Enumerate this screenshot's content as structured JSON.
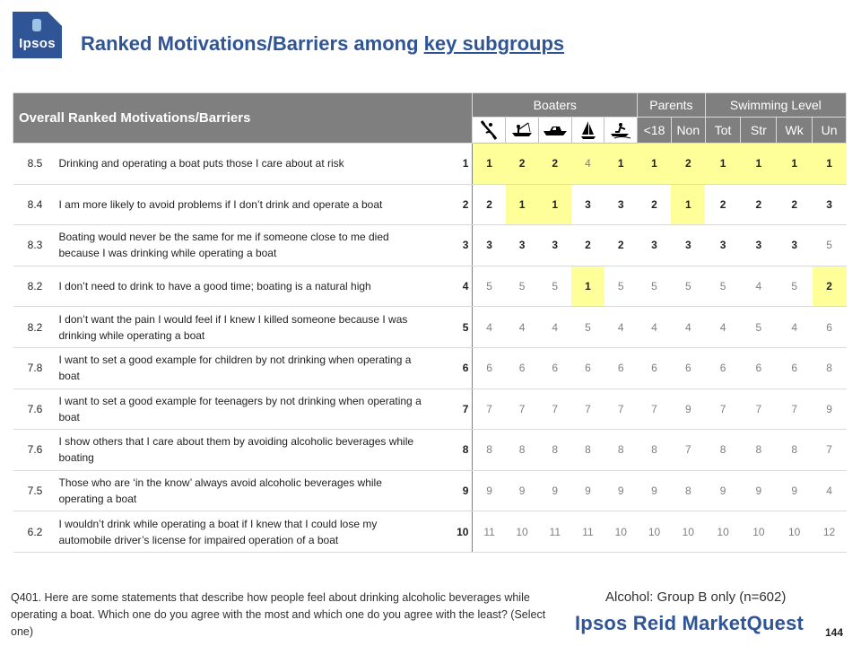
{
  "logo": {
    "text": "Ipsos"
  },
  "title": {
    "prefix": "Ranked Motivations/Barriers among ",
    "underlined": "key subgroups"
  },
  "table": {
    "overall_header": "Overall Ranked Motivations/Barriers",
    "groups": [
      "Boaters",
      "Parents",
      "Swimming Level"
    ],
    "boater_icons": [
      "kayak-icon",
      "fishing-boat-icon",
      "motorboat-icon",
      "sailboat-icon",
      "jetski-icon"
    ],
    "sub_headers": [
      "<18",
      "Non",
      "Tot",
      "Str",
      "Wk",
      "Un"
    ],
    "rows": [
      {
        "score": "8.5",
        "statement": "Drinking and operating a boat puts those I care about at risk",
        "overall": "1",
        "values": [
          "1",
          "2",
          "2",
          "4",
          "1",
          "1",
          "2",
          "1",
          "1",
          "1",
          "1"
        ],
        "bold": [
          1,
          1,
          1,
          0,
          1,
          1,
          1,
          1,
          1,
          1,
          1
        ],
        "highlight": [
          1,
          1,
          1,
          1,
          1,
          1,
          1,
          1,
          1,
          1,
          1
        ]
      },
      {
        "score": "8.4",
        "statement": "I am more likely to avoid problems if I don’t drink and operate a boat",
        "overall": "2",
        "values": [
          "2",
          "1",
          "1",
          "3",
          "3",
          "2",
          "1",
          "2",
          "2",
          "2",
          "3"
        ],
        "bold": [
          1,
          1,
          1,
          1,
          1,
          1,
          1,
          1,
          1,
          1,
          1
        ],
        "highlight": [
          0,
          1,
          1,
          0,
          0,
          0,
          1,
          0,
          0,
          0,
          0
        ]
      },
      {
        "score": "8.3",
        "statement": "Boating would never be the same for me if someone close to me died because I was drinking while operating a boat",
        "overall": "3",
        "values": [
          "3",
          "3",
          "3",
          "2",
          "2",
          "3",
          "3",
          "3",
          "3",
          "3",
          "5"
        ],
        "bold": [
          1,
          1,
          1,
          1,
          1,
          1,
          1,
          1,
          1,
          1,
          0
        ],
        "highlight": [
          0,
          0,
          0,
          0,
          0,
          0,
          0,
          0,
          0,
          0,
          0
        ]
      },
      {
        "score": "8.2",
        "statement": "I don’t need to drink to have a good time; boating is a natural high",
        "overall": "4",
        "values": [
          "5",
          "5",
          "5",
          "1",
          "5",
          "5",
          "5",
          "5",
          "4",
          "5",
          "2"
        ],
        "bold": [
          0,
          0,
          0,
          1,
          0,
          0,
          0,
          0,
          0,
          0,
          1
        ],
        "highlight": [
          0,
          0,
          0,
          1,
          0,
          0,
          0,
          0,
          0,
          0,
          1
        ]
      },
      {
        "score": "8.2",
        "statement": "I don’t want the pain I would feel if I knew I killed someone because I was drinking while operating a boat",
        "overall": "5",
        "values": [
          "4",
          "4",
          "4",
          "5",
          "4",
          "4",
          "4",
          "4",
          "5",
          "4",
          "6"
        ],
        "bold": [
          0,
          0,
          0,
          0,
          0,
          0,
          0,
          0,
          0,
          0,
          0
        ],
        "highlight": [
          0,
          0,
          0,
          0,
          0,
          0,
          0,
          0,
          0,
          0,
          0
        ]
      },
      {
        "score": "7.8",
        "statement": "I want to set a good example for children by not drinking when operating a boat",
        "overall": "6",
        "values": [
          "6",
          "6",
          "6",
          "6",
          "6",
          "6",
          "6",
          "6",
          "6",
          "6",
          "8"
        ],
        "bold": [
          0,
          0,
          0,
          0,
          0,
          0,
          0,
          0,
          0,
          0,
          0
        ],
        "highlight": [
          0,
          0,
          0,
          0,
          0,
          0,
          0,
          0,
          0,
          0,
          0
        ]
      },
      {
        "score": "7.6",
        "statement": "I want to set a good example for teenagers by not drinking when operating a boat",
        "overall": "7",
        "values": [
          "7",
          "7",
          "7",
          "7",
          "7",
          "7",
          "9",
          "7",
          "7",
          "7",
          "9"
        ],
        "bold": [
          0,
          0,
          0,
          0,
          0,
          0,
          0,
          0,
          0,
          0,
          0
        ],
        "highlight": [
          0,
          0,
          0,
          0,
          0,
          0,
          0,
          0,
          0,
          0,
          0
        ]
      },
      {
        "score": "7.6",
        "statement": "I show others that I care about them by avoiding alcoholic beverages while boating",
        "overall": "8",
        "values": [
          "8",
          "8",
          "8",
          "8",
          "8",
          "8",
          "7",
          "8",
          "8",
          "8",
          "7"
        ],
        "bold": [
          0,
          0,
          0,
          0,
          0,
          0,
          0,
          0,
          0,
          0,
          0
        ],
        "highlight": [
          0,
          0,
          0,
          0,
          0,
          0,
          0,
          0,
          0,
          0,
          0
        ]
      },
      {
        "score": "7.5",
        "statement": "Those who are ‘in the know’ always avoid alcoholic beverages while operating a boat",
        "overall": "9",
        "values": [
          "9",
          "9",
          "9",
          "9",
          "9",
          "9",
          "8",
          "9",
          "9",
          "9",
          "4"
        ],
        "bold": [
          0,
          0,
          0,
          0,
          0,
          0,
          0,
          0,
          0,
          0,
          0
        ],
        "highlight": [
          0,
          0,
          0,
          0,
          0,
          0,
          0,
          0,
          0,
          0,
          0
        ]
      },
      {
        "score": "6.2",
        "statement": "I wouldn’t drink while operating a boat if I knew that I could lose my automobile driver’s license for impaired operation of a boat",
        "overall": "10",
        "values": [
          "11",
          "10",
          "11",
          "11",
          "10",
          "10",
          "10",
          "10",
          "10",
          "10",
          "12"
        ],
        "bold": [
          0,
          0,
          0,
          0,
          0,
          0,
          0,
          0,
          0,
          0,
          0
        ],
        "highlight": [
          0,
          0,
          0,
          0,
          0,
          0,
          0,
          0,
          0,
          0,
          0
        ]
      }
    ]
  },
  "footer": {
    "question": "Q401. Here are some statements that describe how people feel about drinking alcoholic beverages while operating a boat.  Which one do you agree with the most and which one do you agree with the least?   (Select one)",
    "base": "Alcohol: Group B only (n=602)",
    "brand": "Ipsos Reid MarketQuest",
    "page_number": "144"
  },
  "colors": {
    "accent": "#2f5597",
    "header_gray": "#7f7f7f",
    "highlight": "#ffff99"
  }
}
